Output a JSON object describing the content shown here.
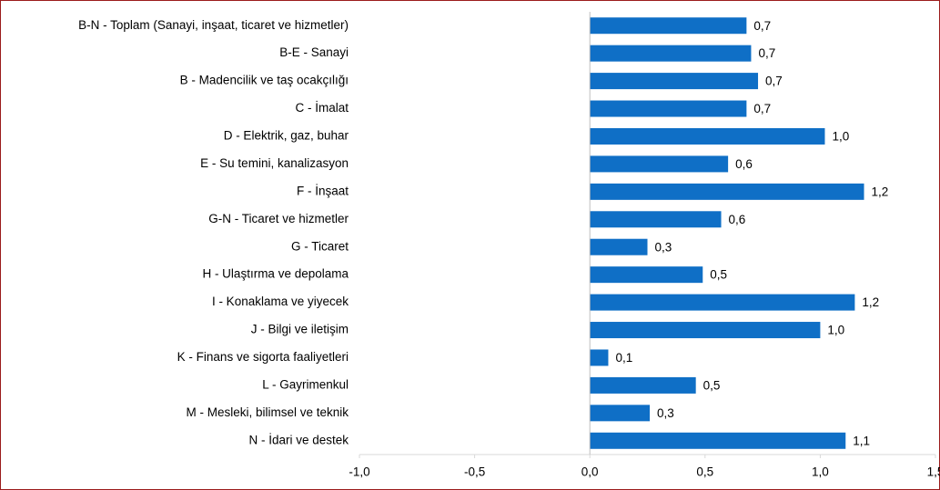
{
  "chart_data": {
    "type": "hbar",
    "categories": [
      "B-N - Toplam (Sanayi, inşaat, ticaret ve hizmetler)",
      "B-E - Sanayi",
      "B - Madencilik ve taş ocakçılığı",
      "C - İmalat",
      "D - Elektrik, gaz, buhar",
      "E - Su temini, kanalizasyon",
      "F - İnşaat",
      "G-N - Ticaret ve hizmetler",
      "G - Ticaret",
      "H - Ulaştırma ve depolama",
      "I - Konaklama ve yiyecek",
      "J - Bilgi ve iletişim",
      "K - Finans ve sigorta faaliyetleri",
      "L - Gayrimenkul",
      "M - Mesleki, bilimsel ve teknik",
      "N - İdari ve destek"
    ],
    "values": [
      0.68,
      0.7,
      0.73,
      0.68,
      1.02,
      0.6,
      1.19,
      0.57,
      0.25,
      0.49,
      1.15,
      1.0,
      0.08,
      0.46,
      0.26,
      1.11
    ],
    "value_labels": [
      "0,7",
      "0,7",
      "0,7",
      "0,7",
      "1,0",
      "0,6",
      "1,2",
      "0,6",
      "0,3",
      "0,5",
      "1,2",
      "1,0",
      "0,1",
      "0,5",
      "0,3",
      "1,1"
    ],
    "color": "#0f6fc6",
    "xlim": [
      -1.0,
      1.5
    ],
    "xticks": [
      {
        "value": -1.0,
        "label": "-1,0"
      },
      {
        "value": -0.5,
        "label": "-0,5"
      },
      {
        "value": 0.0,
        "label": "0,0"
      },
      {
        "value": 0.5,
        "label": "0,5"
      },
      {
        "value": 1.0,
        "label": "1,0"
      },
      {
        "value": 1.5,
        "label": "1,5"
      }
    ],
    "grid": false
  }
}
